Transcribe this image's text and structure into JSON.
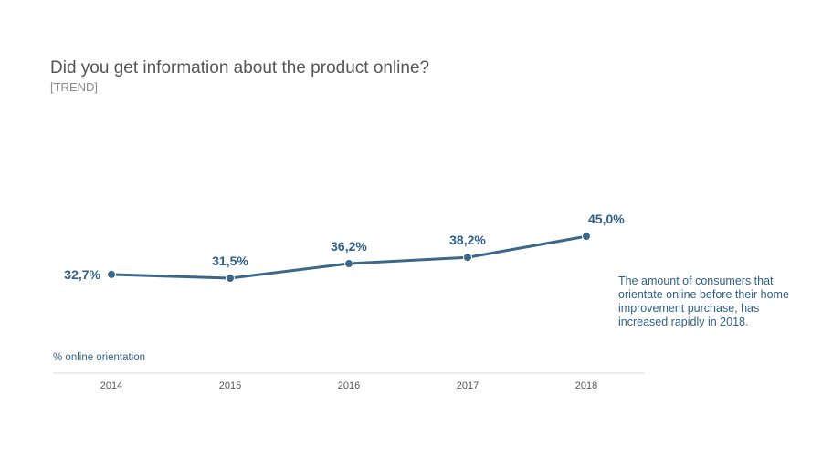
{
  "chart_data": {
    "type": "line",
    "title": "Did you get information about the product online?",
    "subtitle": "[TREND]",
    "ylabel": "% online orientation",
    "xlabel": "",
    "categories": [
      "2014",
      "2015",
      "2016",
      "2017",
      "2018"
    ],
    "series": [
      {
        "values": [
          32.7,
          31.5,
          36.2,
          38.2,
          45.0
        ],
        "labels": [
          "32,7%",
          "31,5%",
          "36,2%",
          "38,2%",
          "45,0%"
        ],
        "color": "#3b6789"
      }
    ],
    "ylim": [
      0,
      100
    ],
    "grid": false,
    "annotation": "The amount of consumers that orientate online before their home improvement purchase, has increased rapidly in 2018."
  }
}
